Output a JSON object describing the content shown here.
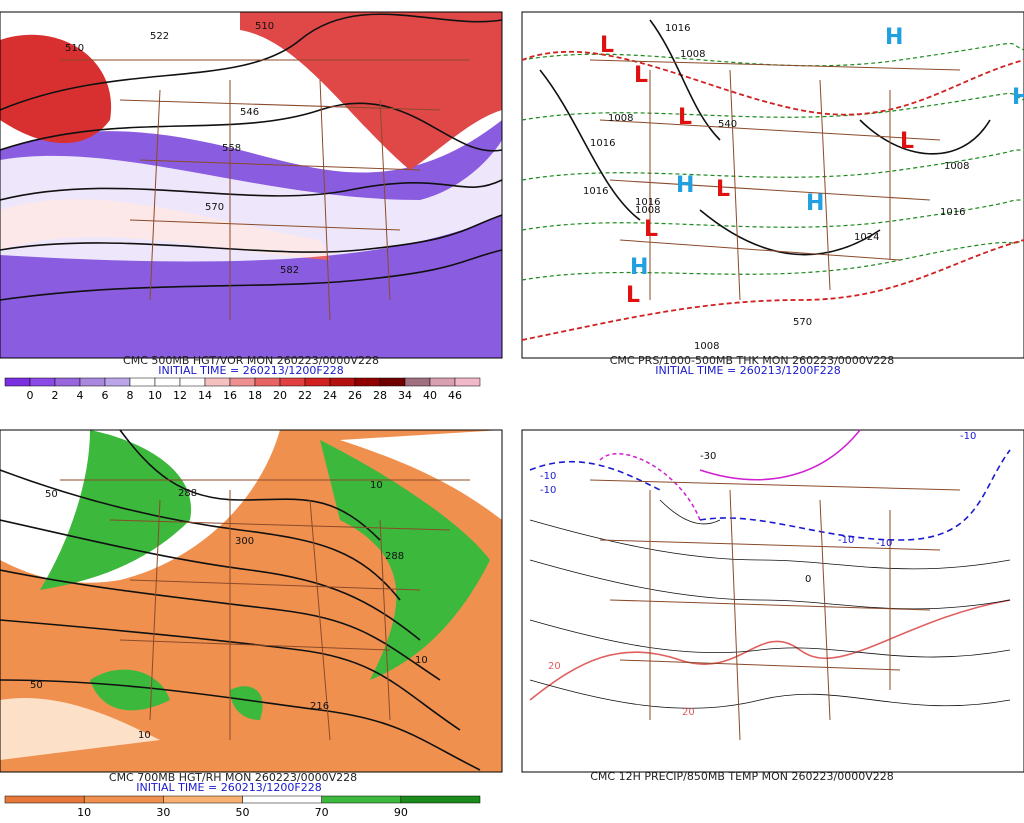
{
  "panels": [
    {
      "caption": "CMC 500MB HGT/VOR MON 260223/0000V228",
      "initial": "INITIAL TIME = 260213/1200F228",
      "labels": [
        "510",
        "522",
        "510",
        "546",
        "558",
        "570",
        "582"
      ],
      "colorbar": {
        "labels": [
          "0",
          "2",
          "4",
          "6",
          "8",
          "10",
          "12",
          "14",
          "16",
          "18",
          "20",
          "22",
          "24",
          "26",
          "28",
          "34",
          "40",
          "46"
        ],
        "colors": [
          "#7a2fe0",
          "#8a4ae6",
          "#9966dd",
          "#aa88e0",
          "#bba6ea",
          "#ffffff",
          "#ffffff",
          "#ffffff",
          "#f4c0c0",
          "#ee9090",
          "#e86464",
          "#e04040",
          "#d02020",
          "#b41010",
          "#900000",
          "#700000",
          "#a07080",
          "#d8a0b0",
          "#f0b8c8"
        ]
      }
    },
    {
      "caption": "CMC PRS/1000-500MB THK MON 260223/0000V228",
      "initial": "INITIAL TIME = 260213/1200F228",
      "labels": [
        "1016",
        "1008",
        "1008",
        "1016",
        "1016",
        "1016",
        "1008",
        "1024",
        "540",
        "570",
        "1008",
        "1016",
        "1008"
      ],
      "markers": [
        "L",
        "L",
        "L",
        "L",
        "L",
        "L",
        "L",
        "H",
        "H",
        "H",
        "H",
        "H"
      ]
    },
    {
      "caption": "CMC 700MB HGT/RH MON 260223/0000V228",
      "initial": "INITIAL TIME = 260213/1200F228",
      "labels": [
        "288",
        "300",
        "288",
        "50",
        "10",
        "50",
        "10",
        "10",
        "216"
      ],
      "colorbar": {
        "labels": [
          "10",
          "30",
          "50",
          "70",
          "90"
        ],
        "colors": [
          "#e8783a",
          "#f0904e",
          "#f8b070",
          "#ffffff",
          "#3cb83c",
          "#1a8a1a"
        ]
      }
    },
    {
      "caption": "CMC 12H PRECIP/850MB TEMP MON 260223/0000V228",
      "labels": [
        "-10",
        "-10",
        "-10",
        "-10",
        "-30",
        "0",
        "20",
        "20",
        "-10"
      ]
    }
  ]
}
